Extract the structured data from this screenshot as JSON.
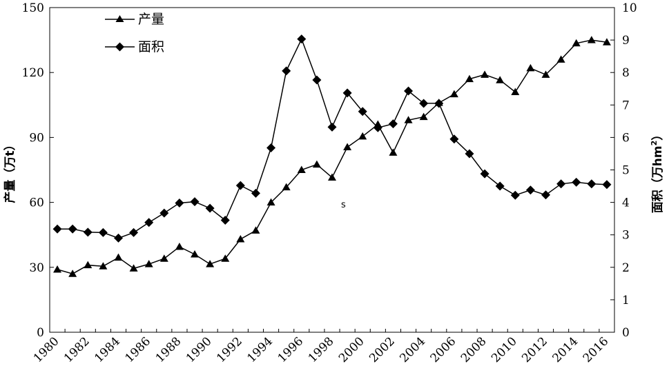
{
  "chart_data": {
    "type": "line",
    "x": [
      1980,
      1981,
      1982,
      1983,
      1984,
      1985,
      1986,
      1987,
      1988,
      1989,
      1990,
      1991,
      1992,
      1993,
      1994,
      1995,
      1996,
      1997,
      1998,
      1999,
      2000,
      2001,
      2002,
      2003,
      2004,
      2005,
      2006,
      2007,
      2008,
      2009,
      2010,
      2011,
      2012,
      2013,
      2014,
      2015,
      2016
    ],
    "x_ticks": [
      "1980",
      "1982",
      "1984",
      "1986",
      "1988",
      "1990",
      "1992",
      "1994",
      "1996",
      "1998",
      "2000",
      "2002",
      "2004",
      "2006",
      "2008",
      "2010",
      "2012",
      "2014",
      "2016"
    ],
    "ylim_left": [
      0,
      150
    ],
    "yticks_left": [
      "0",
      "30",
      "60",
      "90",
      "120",
      "150"
    ],
    "ylim_right": [
      0,
      10
    ],
    "yticks_right": [
      "0",
      "1",
      "2",
      "3",
      "4",
      "5",
      "6",
      "7",
      "8",
      "9",
      "10"
    ],
    "ylabel_left": "产量（万t）",
    "ylabel_right_main": "面积（万hm",
    "ylabel_right_sup": "2",
    "ylabel_right_close": "）",
    "legend_position": "top-left",
    "annotation": "s",
    "series": [
      {
        "name": "产量",
        "axis": "left",
        "marker": "triangle",
        "color": "#000000",
        "values": [
          29,
          27,
          31,
          30.5,
          34.5,
          29.5,
          31.5,
          34,
          39.5,
          36,
          31.5,
          34,
          43,
          47,
          60,
          67,
          75,
          77.5,
          71.5,
          85.5,
          90.5,
          96,
          83,
          98,
          99.5,
          106,
          110,
          117,
          119,
          116.5,
          111,
          122,
          119,
          126,
          133.5,
          135,
          134
        ]
      },
      {
        "name": "面积",
        "axis": "right",
        "marker": "diamond",
        "color": "#000000",
        "values": [
          3.18,
          3.18,
          3.08,
          3.07,
          2.9,
          3.07,
          3.38,
          3.67,
          3.98,
          4.02,
          3.82,
          3.45,
          4.52,
          4.28,
          5.68,
          8.05,
          9.03,
          7.77,
          6.32,
          7.37,
          6.8,
          6.3,
          6.42,
          7.43,
          7.05,
          7.05,
          5.95,
          5.5,
          4.88,
          4.5,
          4.22,
          4.38,
          4.23,
          4.57,
          4.62,
          4.57,
          4.55
        ]
      }
    ]
  }
}
